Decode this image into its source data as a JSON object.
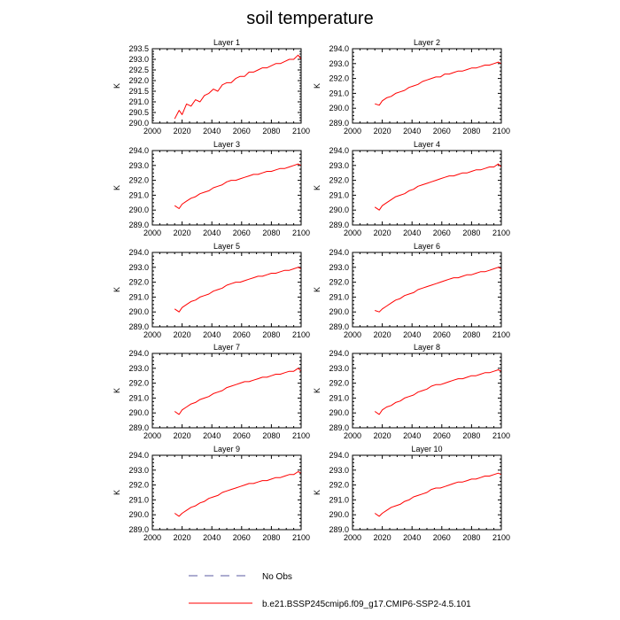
{
  "figure": {
    "title": "soil temperature",
    "legend": {
      "obs_label": "No Obs",
      "model_label": "b.e21.BSSP245cmip6.f09_g17.CMIP6-SSP2-4.5.101",
      "obs_color": "#5a5aa0",
      "model_color": "#ff0000"
    }
  },
  "chart_data": [
    {
      "type": "line",
      "title": "Layer 1",
      "ylabel": "K",
      "xlabel": "",
      "xlim": [
        2000,
        2100
      ],
      "ylim": [
        290.0,
        293.5
      ],
      "xticks": [
        "2000",
        "2020",
        "2040",
        "2060",
        "2080",
        "2100"
      ],
      "yticks": [
        "290.0",
        "290.5",
        "291.0",
        "291.5",
        "292.0",
        "292.5",
        "293.0",
        "293.5"
      ],
      "series": [
        {
          "name": "b.e21.BSSP245cmip6.f09_g17.CMIP6-SSP2-4.5.101",
          "color": "#ff0000",
          "x": [
            2015,
            2018,
            2020,
            2023,
            2026,
            2029,
            2032,
            2035,
            2038,
            2041,
            2044,
            2047,
            2050,
            2053,
            2056,
            2059,
            2062,
            2065,
            2068,
            2071,
            2074,
            2077,
            2080,
            2083,
            2086,
            2089,
            2092,
            2095,
            2098,
            2100
          ],
          "y": [
            290.2,
            290.6,
            290.4,
            290.9,
            290.8,
            291.1,
            291.0,
            291.3,
            291.4,
            291.6,
            291.5,
            291.8,
            291.9,
            291.9,
            292.1,
            292.2,
            292.2,
            292.4,
            292.4,
            292.5,
            292.6,
            292.6,
            292.7,
            292.8,
            292.8,
            292.9,
            293.0,
            293.0,
            293.2,
            293.0
          ]
        }
      ]
    },
    {
      "type": "line",
      "title": "Layer 2",
      "ylabel": "K",
      "xlabel": "",
      "xlim": [
        2000,
        2100
      ],
      "ylim": [
        289.0,
        294.0
      ],
      "xticks": [
        "2000",
        "2020",
        "2040",
        "2060",
        "2080",
        "2100"
      ],
      "yticks": [
        "289.0",
        "290.0",
        "291.0",
        "292.0",
        "293.0",
        "294.0"
      ],
      "series": [
        {
          "name": "b.e21.BSSP245cmip6.f09_g17.CMIP6-SSP2-4.5.101",
          "color": "#ff0000",
          "x": [
            2015,
            2018,
            2020,
            2023,
            2026,
            2029,
            2032,
            2035,
            2038,
            2041,
            2044,
            2047,
            2050,
            2053,
            2056,
            2059,
            2062,
            2065,
            2068,
            2071,
            2074,
            2077,
            2080,
            2083,
            2086,
            2089,
            2092,
            2095,
            2098,
            2100
          ],
          "y": [
            290.3,
            290.2,
            290.5,
            290.7,
            290.8,
            291.0,
            291.1,
            291.2,
            291.4,
            291.5,
            291.6,
            291.8,
            291.9,
            292.0,
            292.1,
            292.1,
            292.3,
            292.3,
            292.4,
            292.5,
            292.5,
            292.6,
            292.7,
            292.7,
            292.8,
            292.9,
            292.9,
            293.0,
            293.1,
            293.0
          ]
        }
      ]
    },
    {
      "type": "line",
      "title": "Layer 3",
      "ylabel": "K",
      "xlabel": "",
      "xlim": [
        2000,
        2100
      ],
      "ylim": [
        289.0,
        294.0
      ],
      "xticks": [
        "2000",
        "2020",
        "2040",
        "2060",
        "2080",
        "2100"
      ],
      "yticks": [
        "289.0",
        "290.0",
        "291.0",
        "292.0",
        "293.0",
        "294.0"
      ],
      "series": [
        {
          "name": "b.e21.BSSP245cmip6.f09_g17.CMIP6-SSP2-4.5.101",
          "color": "#ff0000",
          "x": [
            2015,
            2018,
            2020,
            2023,
            2026,
            2029,
            2032,
            2035,
            2038,
            2041,
            2044,
            2047,
            2050,
            2053,
            2056,
            2059,
            2062,
            2065,
            2068,
            2071,
            2074,
            2077,
            2080,
            2083,
            2086,
            2089,
            2092,
            2095,
            2098,
            2100
          ],
          "y": [
            290.3,
            290.1,
            290.4,
            290.6,
            290.8,
            290.9,
            291.1,
            291.2,
            291.3,
            291.5,
            291.6,
            291.7,
            291.9,
            292.0,
            292.0,
            292.1,
            292.2,
            292.3,
            292.4,
            292.4,
            292.5,
            292.6,
            292.6,
            292.7,
            292.8,
            292.8,
            292.9,
            293.0,
            293.1,
            293.0
          ]
        }
      ]
    },
    {
      "type": "line",
      "title": "Layer 4",
      "ylabel": "K",
      "xlabel": "",
      "xlim": [
        2000,
        2100
      ],
      "ylim": [
        289.0,
        294.0
      ],
      "xticks": [
        "2000",
        "2020",
        "2040",
        "2060",
        "2080",
        "2100"
      ],
      "yticks": [
        "289.0",
        "290.0",
        "291.0",
        "292.0",
        "293.0",
        "294.0"
      ],
      "series": [
        {
          "name": "b.e21.BSSP245cmip6.f09_g17.CMIP6-SSP2-4.5.101",
          "color": "#ff0000",
          "x": [
            2015,
            2018,
            2020,
            2023,
            2026,
            2029,
            2032,
            2035,
            2038,
            2041,
            2044,
            2047,
            2050,
            2053,
            2056,
            2059,
            2062,
            2065,
            2068,
            2071,
            2074,
            2077,
            2080,
            2083,
            2086,
            2089,
            2092,
            2095,
            2098,
            2100
          ],
          "y": [
            290.2,
            290.0,
            290.3,
            290.5,
            290.7,
            290.9,
            291.0,
            291.1,
            291.3,
            291.4,
            291.6,
            291.7,
            291.8,
            291.9,
            292.0,
            292.1,
            292.2,
            292.3,
            292.3,
            292.4,
            292.5,
            292.5,
            292.6,
            292.7,
            292.7,
            292.8,
            292.9,
            292.9,
            293.1,
            292.9
          ]
        }
      ]
    },
    {
      "type": "line",
      "title": "Layer 5",
      "ylabel": "K",
      "xlabel": "",
      "xlim": [
        2000,
        2100
      ],
      "ylim": [
        289.0,
        294.0
      ],
      "xticks": [
        "2000",
        "2020",
        "2040",
        "2060",
        "2080",
        "2100"
      ],
      "yticks": [
        "289.0",
        "290.0",
        "291.0",
        "292.0",
        "293.0",
        "294.0"
      ],
      "series": [
        {
          "name": "b.e21.BSSP245cmip6.f09_g17.CMIP6-SSP2-4.5.101",
          "color": "#ff0000",
          "x": [
            2015,
            2018,
            2020,
            2023,
            2026,
            2029,
            2032,
            2035,
            2038,
            2041,
            2044,
            2047,
            2050,
            2053,
            2056,
            2059,
            2062,
            2065,
            2068,
            2071,
            2074,
            2077,
            2080,
            2083,
            2086,
            2089,
            2092,
            2095,
            2098,
            2100
          ],
          "y": [
            290.2,
            290.0,
            290.3,
            290.5,
            290.7,
            290.8,
            291.0,
            291.1,
            291.2,
            291.4,
            291.5,
            291.6,
            291.8,
            291.9,
            292.0,
            292.0,
            292.1,
            292.2,
            292.3,
            292.4,
            292.4,
            292.5,
            292.6,
            292.6,
            292.7,
            292.8,
            292.8,
            292.9,
            293.0,
            292.9
          ]
        }
      ]
    },
    {
      "type": "line",
      "title": "Layer 6",
      "ylabel": "K",
      "xlabel": "",
      "xlim": [
        2000,
        2100
      ],
      "ylim": [
        289.0,
        294.0
      ],
      "xticks": [
        "2000",
        "2020",
        "2040",
        "2060",
        "2080",
        "2100"
      ],
      "yticks": [
        "289.0",
        "290.0",
        "291.0",
        "292.0",
        "293.0",
        "294.0"
      ],
      "series": [
        {
          "name": "b.e21.BSSP245cmip6.f09_g17.CMIP6-SSP2-4.5.101",
          "color": "#ff0000",
          "x": [
            2015,
            2018,
            2020,
            2023,
            2026,
            2029,
            2032,
            2035,
            2038,
            2041,
            2044,
            2047,
            2050,
            2053,
            2056,
            2059,
            2062,
            2065,
            2068,
            2071,
            2074,
            2077,
            2080,
            2083,
            2086,
            2089,
            2092,
            2095,
            2098,
            2100
          ],
          "y": [
            290.1,
            290.0,
            290.2,
            290.4,
            290.6,
            290.8,
            290.9,
            291.1,
            291.2,
            291.3,
            291.5,
            291.6,
            291.7,
            291.8,
            291.9,
            292.0,
            292.1,
            292.2,
            292.3,
            292.3,
            292.4,
            292.5,
            292.5,
            292.6,
            292.7,
            292.7,
            292.8,
            292.9,
            293.0,
            292.9
          ]
        }
      ]
    },
    {
      "type": "line",
      "title": "Layer 7",
      "ylabel": "K",
      "xlabel": "",
      "xlim": [
        2000,
        2100
      ],
      "ylim": [
        289.0,
        294.0
      ],
      "xticks": [
        "2000",
        "2020",
        "2040",
        "2060",
        "2080",
        "2100"
      ],
      "yticks": [
        "289.0",
        "290.0",
        "291.0",
        "292.0",
        "293.0",
        "294.0"
      ],
      "series": [
        {
          "name": "b.e21.BSSP245cmip6.f09_g17.CMIP6-SSP2-4.5.101",
          "color": "#ff0000",
          "x": [
            2015,
            2018,
            2020,
            2023,
            2026,
            2029,
            2032,
            2035,
            2038,
            2041,
            2044,
            2047,
            2050,
            2053,
            2056,
            2059,
            2062,
            2065,
            2068,
            2071,
            2074,
            2077,
            2080,
            2083,
            2086,
            2089,
            2092,
            2095,
            2098,
            2100
          ],
          "y": [
            290.1,
            289.9,
            290.2,
            290.4,
            290.6,
            290.7,
            290.9,
            291.0,
            291.1,
            291.3,
            291.4,
            291.5,
            291.7,
            291.8,
            291.9,
            292.0,
            292.1,
            292.1,
            292.2,
            292.3,
            292.4,
            292.4,
            292.5,
            292.6,
            292.6,
            292.7,
            292.8,
            292.8,
            293.0,
            292.8
          ]
        }
      ]
    },
    {
      "type": "line",
      "title": "Layer 8",
      "ylabel": "K",
      "xlabel": "",
      "xlim": [
        2000,
        2100
      ],
      "ylim": [
        289.0,
        294.0
      ],
      "xticks": [
        "2000",
        "2020",
        "2040",
        "2060",
        "2080",
        "2100"
      ],
      "yticks": [
        "289.0",
        "290.0",
        "291.0",
        "292.0",
        "293.0",
        "294.0"
      ],
      "series": [
        {
          "name": "b.e21.BSSP245cmip6.f09_g17.CMIP6-SSP2-4.5.101",
          "color": "#ff0000",
          "x": [
            2015,
            2018,
            2020,
            2023,
            2026,
            2029,
            2032,
            2035,
            2038,
            2041,
            2044,
            2047,
            2050,
            2053,
            2056,
            2059,
            2062,
            2065,
            2068,
            2071,
            2074,
            2077,
            2080,
            2083,
            2086,
            2089,
            2092,
            2095,
            2098,
            2100
          ],
          "y": [
            290.1,
            289.9,
            290.2,
            290.4,
            290.5,
            290.7,
            290.8,
            291.0,
            291.1,
            291.2,
            291.4,
            291.5,
            291.6,
            291.8,
            291.9,
            291.9,
            292.0,
            292.1,
            292.2,
            292.3,
            292.3,
            292.4,
            292.5,
            292.5,
            292.6,
            292.7,
            292.7,
            292.8,
            292.9,
            292.8
          ]
        }
      ]
    },
    {
      "type": "line",
      "title": "Layer 9",
      "ylabel": "K",
      "xlabel": "",
      "xlim": [
        2000,
        2100
      ],
      "ylim": [
        289.0,
        294.0
      ],
      "xticks": [
        "2000",
        "2020",
        "2040",
        "2060",
        "2080",
        "2100"
      ],
      "yticks": [
        "289.0",
        "290.0",
        "291.0",
        "292.0",
        "293.0",
        "294.0"
      ],
      "series": [
        {
          "name": "b.e21.BSSP245cmip6.f09_g17.CMIP6-SSP2-4.5.101",
          "color": "#ff0000",
          "x": [
            2015,
            2018,
            2020,
            2023,
            2026,
            2029,
            2032,
            2035,
            2038,
            2041,
            2044,
            2047,
            2050,
            2053,
            2056,
            2059,
            2062,
            2065,
            2068,
            2071,
            2074,
            2077,
            2080,
            2083,
            2086,
            2089,
            2092,
            2095,
            2098,
            2100
          ],
          "y": [
            290.1,
            289.9,
            290.1,
            290.3,
            290.5,
            290.6,
            290.8,
            290.9,
            291.1,
            291.2,
            291.3,
            291.5,
            291.6,
            291.7,
            291.8,
            291.9,
            292.0,
            292.1,
            292.1,
            292.2,
            292.3,
            292.3,
            292.4,
            292.5,
            292.5,
            292.6,
            292.7,
            292.7,
            292.9,
            292.8
          ]
        }
      ]
    },
    {
      "type": "line",
      "title": "Layer 10",
      "ylabel": "K",
      "xlabel": "",
      "xlim": [
        2000,
        2100
      ],
      "ylim": [
        289.0,
        294.0
      ],
      "xticks": [
        "2000",
        "2020",
        "2040",
        "2060",
        "2080",
        "2100"
      ],
      "yticks": [
        "289.0",
        "290.0",
        "291.0",
        "292.0",
        "293.0",
        "294.0"
      ],
      "series": [
        {
          "name": "b.e21.BSSP245cmip6.f09_g17.CMIP6-SSP2-4.5.101",
          "color": "#ff0000",
          "x": [
            2015,
            2018,
            2020,
            2023,
            2026,
            2029,
            2032,
            2035,
            2038,
            2041,
            2044,
            2047,
            2050,
            2053,
            2056,
            2059,
            2062,
            2065,
            2068,
            2071,
            2074,
            2077,
            2080,
            2083,
            2086,
            2089,
            2092,
            2095,
            2098,
            2100
          ],
          "y": [
            290.1,
            289.9,
            290.1,
            290.3,
            290.5,
            290.6,
            290.7,
            290.9,
            291.0,
            291.2,
            291.3,
            291.4,
            291.5,
            291.7,
            291.8,
            291.8,
            291.9,
            292.0,
            292.1,
            292.2,
            292.2,
            292.3,
            292.4,
            292.4,
            292.5,
            292.6,
            292.6,
            292.7,
            292.8,
            292.7
          ]
        }
      ]
    }
  ]
}
